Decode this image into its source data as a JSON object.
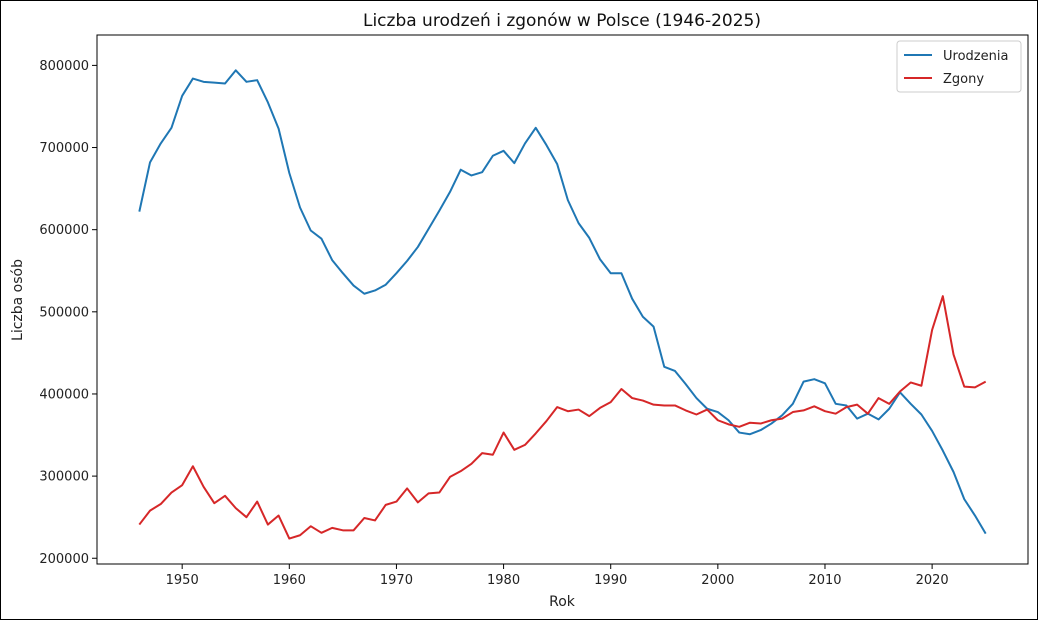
{
  "chart_data": {
    "type": "line",
    "title": "Liczba urodzeń i zgonów w Polsce (1946-2025)",
    "xlabel": "Rok",
    "ylabel": "Liczba osób",
    "xlim": [
      1942.05,
      2028.95
    ],
    "ylim": [
      193000,
      837000
    ],
    "x_ticks": [
      1950,
      1960,
      1970,
      1980,
      1990,
      2000,
      2010,
      2020
    ],
    "y_ticks": [
      200000,
      300000,
      400000,
      500000,
      600000,
      700000,
      800000
    ],
    "legend_position": "top-right",
    "grid": false,
    "x": [
      1946,
      1947,
      1948,
      1949,
      1950,
      1951,
      1952,
      1953,
      1954,
      1955,
      1956,
      1957,
      1958,
      1959,
      1960,
      1961,
      1962,
      1963,
      1964,
      1965,
      1966,
      1967,
      1968,
      1969,
      1970,
      1971,
      1972,
      1973,
      1974,
      1975,
      1976,
      1977,
      1978,
      1979,
      1980,
      1981,
      1982,
      1983,
      1984,
      1985,
      1986,
      1987,
      1988,
      1989,
      1990,
      1991,
      1992,
      1993,
      1994,
      1995,
      1996,
      1997,
      1998,
      1999,
      2000,
      2001,
      2002,
      2003,
      2004,
      2005,
      2006,
      2007,
      2008,
      2009,
      2010,
      2011,
      2012,
      2013,
      2014,
      2015,
      2016,
      2017,
      2018,
      2019,
      2020,
      2021,
      2022,
      2023,
      2024,
      2025
    ],
    "series": [
      {
        "name": "Urodzenia",
        "color": "#1f77b4",
        "values": [
          622000,
          682000,
          705000,
          724000,
          763000,
          784000,
          780000,
          779000,
          778000,
          794000,
          780000,
          782000,
          755000,
          723000,
          669000,
          627000,
          599000,
          589000,
          563000,
          547000,
          532000,
          522000,
          526000,
          533000,
          547000,
          562000,
          579000,
          601000,
          623000,
          646000,
          673000,
          666000,
          670000,
          690000,
          696000,
          681000,
          705000,
          724000,
          703000,
          680000,
          636000,
          608000,
          590000,
          564000,
          547000,
          547000,
          516000,
          494000,
          482000,
          433000,
          428000,
          412000,
          395000,
          382000,
          378000,
          368000,
          353000,
          351000,
          356000,
          364000,
          374000,
          388000,
          415000,
          418000,
          413000,
          388000,
          386000,
          370000,
          376000,
          369000,
          382000,
          402000,
          388000,
          375000,
          355000,
          331000,
          305000,
          272000,
          252000,
          230000
        ]
      },
      {
        "name": "Zgony",
        "color": "#d62728",
        "values": [
          241000,
          258000,
          266000,
          280000,
          289000,
          312000,
          287000,
          267000,
          276000,
          261000,
          250000,
          269000,
          241000,
          252000,
          224000,
          228000,
          239000,
          231000,
          237000,
          234000,
          234000,
          249000,
          246000,
          265000,
          269000,
          285000,
          268000,
          279000,
          280000,
          299000,
          306000,
          315000,
          328000,
          326000,
          353000,
          332000,
          338000,
          352000,
          367000,
          384000,
          379000,
          381000,
          373000,
          383000,
          390000,
          406000,
          395000,
          392000,
          387000,
          386000,
          386000,
          380000,
          375000,
          381000,
          368000,
          363000,
          360000,
          365000,
          364000,
          368000,
          370000,
          378000,
          380000,
          385000,
          379000,
          376000,
          384000,
          387000,
          376000,
          395000,
          388000,
          403000,
          414000,
          410000,
          478000,
          519000,
          448000,
          409000,
          408000,
          415000
        ]
      }
    ]
  }
}
